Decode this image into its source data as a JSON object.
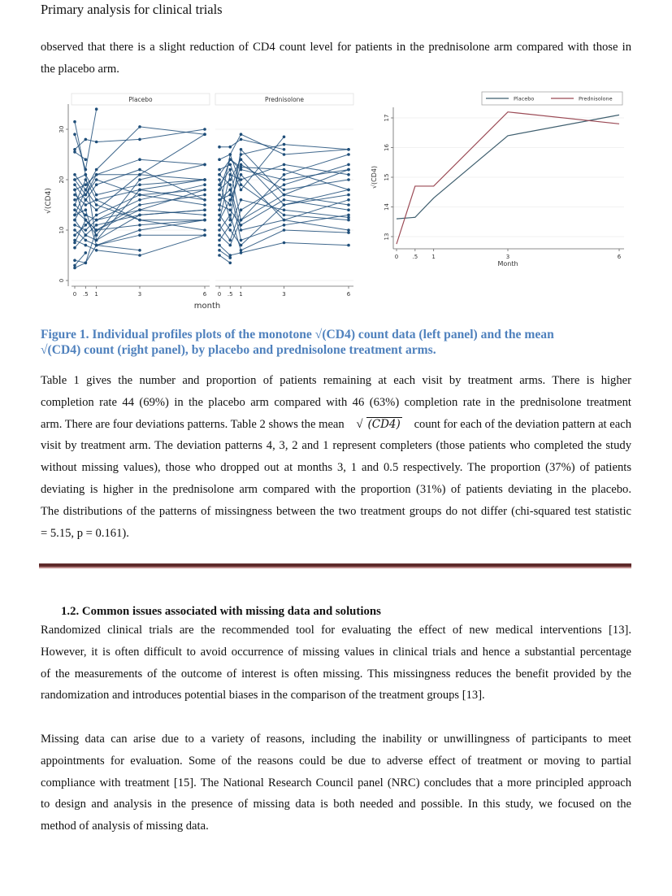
{
  "header": "Primary analysis for clinical trials",
  "intro_lines": [
    "observed that there is a slight reduction of CD4 count level for patients in the prednisolone arm compared with those in",
    "the placebo arm."
  ],
  "caption_lines": [
    "Figure 1. Individual profiles plots of the monotone √(CD4) count data (left panel) and the mean",
    "√(CD4) count (right panel), by placebo and prednisolone treatment arms."
  ],
  "para1": {
    "line1": "Table 1 gives the number and proportion of patients remaining at each visit by treatment arms. There is higher",
    "line2": "completion rate 44 (69%) in the placebo arm compared with 46 (63%) completion rate in the prednisolone treatment",
    "line3_pre": "arm. There are four deviations patterns. Table 2 shows the mean",
    "line3_math": "(CD4)",
    "line3_post": "count for each of the deviation pattern at each",
    "rest": [
      "visit by treatment arm. The deviation patterns 4, 3, 2 and 1 represent completers (those patients who completed the study",
      "without missing values), those who dropped out at months 3, 1 and 0.5 respectively. The proportion (37%) of patients",
      "deviating is higher in the prednisolone arm compared with the proportion (31%) of patients deviating in the placebo.",
      "The distributions of the patterns of missingness between the two treatment groups do not differ (chi-squared test statistic",
      "= 5.15, p = 0.161)."
    ]
  },
  "section_heading": "1.2. Common issues associated with missing data and solutions",
  "para2": [
    "Randomized clinical trials are the recommended tool for evaluating the effect of new medical interventions [13].",
    "However, it is often difficult to avoid occurrence of missing values in clinical trials and hence a substantial percentage",
    "of the measurements of the outcome of interest is often missing. This missingness reduces the benefit provided by the",
    "randomization and introduces potential biases in the comparison of the treatment groups [13]."
  ],
  "para3": [
    "Missing data can arise due to a variety of reasons, including the inability or unwillingness of participants to meet",
    "appointments for evaluation. Some of the reasons could be due to adverse effect of treatment or moving to partial",
    "compliance with treatment [15]. The National Research Council panel (NRC) concludes that a more principled approach",
    "to design and analysis in the presence of missing data is both needed and possible. In this study, we focused on the",
    "method of analysis of missing data."
  ],
  "colors": {
    "caption": "#4f81bd",
    "profile": "#1f4e79",
    "placebo_mean": "#3f5f6f",
    "prednisolone_mean": "#9b4a55",
    "rule": "#5e2a2a"
  },
  "chart_data": [
    {
      "type": "line",
      "panels": [
        "Placebo",
        "Prednisolone"
      ],
      "xlabel": "month",
      "ylabel": "√(CD4)",
      "x": [
        0,
        0.5,
        1,
        3,
        6
      ],
      "xtick_labels": [
        "0",
        ".5",
        "1",
        "3",
        "6"
      ],
      "yticks": [
        0,
        10,
        20,
        30
      ],
      "ylim": [
        0,
        35
      ],
      "grid": true,
      "profiles": {
        "Placebo": [
          [
            31.5,
            21,
            8,
            18,
            20
          ],
          [
            29,
            22,
            34,
            null,
            null
          ],
          [
            26,
            28,
            27.5,
            28,
            30
          ],
          [
            25.5,
            24,
            null,
            null,
            null
          ],
          [
            20,
            17,
            21,
            21,
            20
          ],
          [
            19,
            16,
            14,
            21,
            29
          ],
          [
            18,
            12,
            10,
            15,
            17
          ],
          [
            17,
            15,
            16,
            18,
            16
          ],
          [
            15,
            13,
            12,
            14,
            13
          ],
          [
            14,
            12,
            9,
            20,
            23
          ],
          [
            13,
            18,
            15,
            12,
            12
          ],
          [
            12,
            9,
            8,
            13,
            14
          ],
          [
            11,
            10,
            12,
            16,
            19
          ],
          [
            10,
            8,
            7,
            9,
            9
          ],
          [
            9,
            11,
            13,
            17,
            15
          ],
          [
            8,
            7,
            6,
            5,
            9
          ],
          [
            7.5,
            12,
            10,
            11,
            12
          ],
          [
            4,
            3.5,
            7,
            10,
            12
          ],
          [
            3,
            5.5,
            null,
            null,
            null
          ],
          [
            2.5,
            3.5,
            10,
            14,
            18
          ],
          [
            16,
            17,
            20,
            17,
            18
          ],
          [
            20,
            21,
            17,
            19,
            20
          ],
          [
            13,
            14,
            7,
            6,
            null
          ],
          [
            18,
            19,
            21,
            24,
            23
          ],
          [
            21,
            18,
            22,
            30.5,
            29
          ],
          [
            12,
            16,
            19,
            22,
            16
          ],
          [
            6.5,
            9,
            11,
            13,
            14
          ],
          [
            15,
            20,
            16,
            12,
            10
          ]
        ],
        "Prednisolone": [
          [
            26.5,
            26.5,
            28,
            26,
            null
          ],
          [
            24,
            25,
            29,
            25,
            26
          ],
          [
            22,
            23,
            18,
            28.5,
            null
          ],
          [
            21,
            24,
            22,
            20,
            22
          ],
          [
            20,
            12,
            26,
            17,
            15
          ],
          [
            19,
            22,
            12,
            21,
            25
          ],
          [
            18,
            20,
            24,
            15,
            17
          ],
          [
            17,
            15,
            23,
            18,
            20
          ],
          [
            16,
            18,
            8,
            11,
            13
          ],
          [
            15,
            14,
            11,
            16,
            14
          ],
          [
            14,
            25,
            19,
            13,
            12
          ],
          [
            13,
            10,
            7,
            15,
            18
          ],
          [
            12,
            16,
            21,
            12,
            10
          ],
          [
            11,
            8,
            14,
            19,
            23
          ],
          [
            10,
            13,
            6,
            10,
            9.5
          ],
          [
            9,
            7,
            12,
            17,
            22
          ],
          [
            8,
            11,
            16,
            14,
            12.5
          ],
          [
            7,
            5,
            5.5,
            7.5,
            7
          ],
          [
            6,
            4.5,
            null,
            null,
            null
          ],
          [
            5,
            3.5,
            null,
            null,
            null
          ],
          [
            18,
            24,
            22.5,
            22,
            18
          ],
          [
            21,
            19,
            10,
            12,
            16
          ],
          [
            12,
            21,
            20,
            23,
            21
          ],
          [
            16,
            17,
            25,
            27,
            26
          ]
        ]
      }
    },
    {
      "type": "line",
      "xlabel": "Month",
      "ylabel": "√(CD4)",
      "x": [
        0,
        0.5,
        1,
        3,
        6
      ],
      "xtick_labels": [
        "0",
        ".5",
        "1",
        "3",
        "6"
      ],
      "yticks": [
        13,
        14,
        15,
        16,
        17
      ],
      "ylim": [
        12.6,
        17.3
      ],
      "grid": true,
      "legend": "top-right",
      "series": [
        {
          "name": "Placebo",
          "values": [
            13.6,
            13.65,
            14.3,
            16.4,
            17.1
          ]
        },
        {
          "name": "Prednisolone",
          "values": [
            12.75,
            14.7,
            14.7,
            17.2,
            16.8
          ]
        }
      ]
    }
  ]
}
